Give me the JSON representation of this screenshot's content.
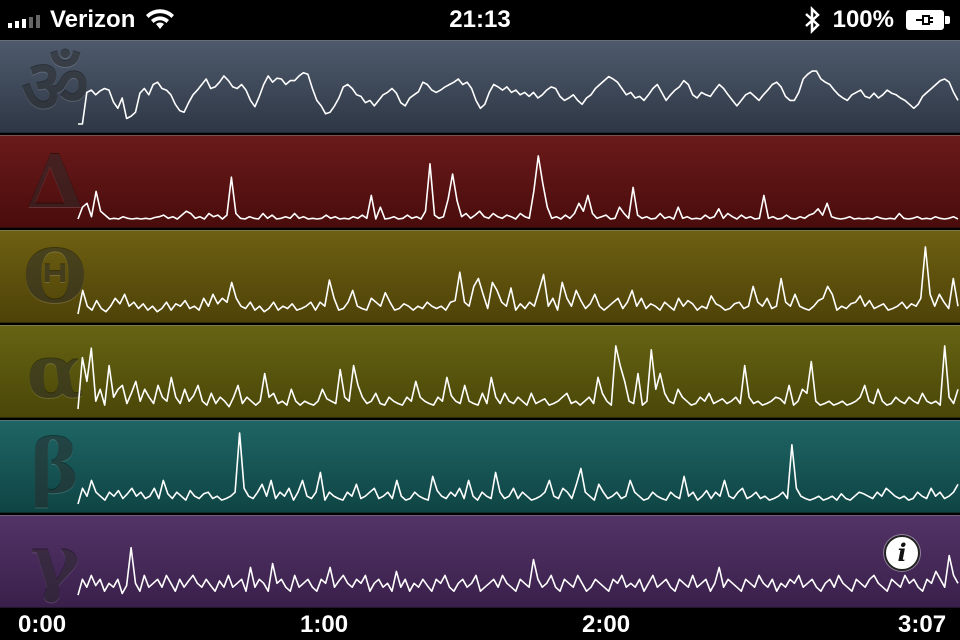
{
  "status_bar": {
    "carrier": "Verizon",
    "time": "21:13",
    "battery_percent": "100%",
    "signal_bars": 5,
    "signal_bars_active": 3
  },
  "bands": [
    {
      "key": "meditation",
      "glyph": "ॐ",
      "color_top": "#4e5a6c",
      "color_bottom": "#2e3745",
      "values": [
        0.05,
        0.05,
        0.45,
        0.48,
        0.42,
        0.47,
        0.5,
        0.48,
        0.33,
        0.25,
        0.38,
        0.12,
        0.15,
        0.2,
        0.44,
        0.5,
        0.42,
        0.55,
        0.58,
        0.5,
        0.48,
        0.42,
        0.3,
        0.22,
        0.2,
        0.32,
        0.42,
        0.48,
        0.55,
        0.62,
        0.5,
        0.52,
        0.58,
        0.66,
        0.6,
        0.52,
        0.5,
        0.55,
        0.48,
        0.35,
        0.27,
        0.4,
        0.55,
        0.66,
        0.58,
        0.63,
        0.62,
        0.55,
        0.6,
        0.6,
        0.66,
        0.7,
        0.68,
        0.5,
        0.35,
        0.28,
        0.18,
        0.2,
        0.28,
        0.38,
        0.52,
        0.55,
        0.5,
        0.42,
        0.4,
        0.32,
        0.35,
        0.28,
        0.35,
        0.42,
        0.45,
        0.5,
        0.44,
        0.32,
        0.28,
        0.38,
        0.42,
        0.46,
        0.58,
        0.55,
        0.48,
        0.45,
        0.48,
        0.52,
        0.55,
        0.58,
        0.62,
        0.55,
        0.58,
        0.5,
        0.35,
        0.25,
        0.3,
        0.45,
        0.55,
        0.52,
        0.48,
        0.52,
        0.45,
        0.48,
        0.42,
        0.45,
        0.4,
        0.45,
        0.38,
        0.42,
        0.48,
        0.52,
        0.5,
        0.4,
        0.35,
        0.38,
        0.42,
        0.35,
        0.3,
        0.38,
        0.42,
        0.5,
        0.55,
        0.6,
        0.65,
        0.62,
        0.58,
        0.5,
        0.42,
        0.45,
        0.38,
        0.4,
        0.35,
        0.42,
        0.5,
        0.55,
        0.45,
        0.35,
        0.42,
        0.48,
        0.52,
        0.6,
        0.55,
        0.42,
        0.38,
        0.45,
        0.42,
        0.4,
        0.48,
        0.55,
        0.5,
        0.42,
        0.35,
        0.28,
        0.35,
        0.42,
        0.45,
        0.4,
        0.35,
        0.42,
        0.48,
        0.55,
        0.58,
        0.52,
        0.4,
        0.35,
        0.35,
        0.45,
        0.62,
        0.68,
        0.72,
        0.72,
        0.62,
        0.58,
        0.55,
        0.48,
        0.42,
        0.38,
        0.35,
        0.42,
        0.45,
        0.48,
        0.4,
        0.38,
        0.44,
        0.38,
        0.42,
        0.48,
        0.44,
        0.42,
        0.38,
        0.35,
        0.3,
        0.25,
        0.3,
        0.4,
        0.45,
        0.5,
        0.55,
        0.6,
        0.62,
        0.58,
        0.45,
        0.35
      ]
    },
    {
      "key": "delta",
      "glyph": "Δ",
      "color_top": "#6a1a1a",
      "color_bottom": "#4a0c0c",
      "values": [
        0.05,
        0.2,
        0.25,
        0.08,
        0.4,
        0.15,
        0.1,
        0.05,
        0.06,
        0.05,
        0.08,
        0.06,
        0.05,
        0.06,
        0.05,
        0.06,
        0.05,
        0.07,
        0.08,
        0.1,
        0.06,
        0.08,
        0.05,
        0.1,
        0.15,
        0.12,
        0.06,
        0.08,
        0.05,
        0.12,
        0.08,
        0.1,
        0.05,
        0.1,
        0.58,
        0.12,
        0.06,
        0.05,
        0.08,
        0.06,
        0.05,
        0.12,
        0.06,
        0.1,
        0.05,
        0.06,
        0.08,
        0.06,
        0.12,
        0.06,
        0.08,
        0.05,
        0.06,
        0.05,
        0.06,
        0.1,
        0.06,
        0.08,
        0.05,
        0.06,
        0.05,
        0.08,
        0.06,
        0.1,
        0.06,
        0.35,
        0.05,
        0.2,
        0.05,
        0.06,
        0.08,
        0.05,
        0.06,
        0.1,
        0.06,
        0.08,
        0.05,
        0.15,
        0.75,
        0.1,
        0.06,
        0.08,
        0.3,
        0.62,
        0.28,
        0.08,
        0.12,
        0.06,
        0.1,
        0.15,
        0.08,
        0.06,
        0.12,
        0.08,
        0.06,
        0.1,
        0.08,
        0.05,
        0.12,
        0.08,
        0.06,
        0.4,
        0.85,
        0.5,
        0.2,
        0.06,
        0.08,
        0.05,
        0.1,
        0.06,
        0.12,
        0.25,
        0.15,
        0.35,
        0.12,
        0.06,
        0.08,
        0.1,
        0.05,
        0.06,
        0.2,
        0.12,
        0.06,
        0.45,
        0.1,
        0.06,
        0.08,
        0.05,
        0.06,
        0.12,
        0.06,
        0.08,
        0.05,
        0.2,
        0.06,
        0.08,
        0.05,
        0.06,
        0.05,
        0.1,
        0.06,
        0.08,
        0.18,
        0.06,
        0.12,
        0.08,
        0.05,
        0.1,
        0.06,
        0.08,
        0.05,
        0.06,
        0.35,
        0.06,
        0.08,
        0.05,
        0.06,
        0.1,
        0.06,
        0.05,
        0.08,
        0.06,
        0.1,
        0.12,
        0.18,
        0.1,
        0.25,
        0.08,
        0.06,
        0.05,
        0.06,
        0.08,
        0.05,
        0.06,
        0.05,
        0.06,
        0.05,
        0.08,
        0.06,
        0.05,
        0.06,
        0.05,
        0.12,
        0.06,
        0.05,
        0.06,
        0.08,
        0.05,
        0.06,
        0.05,
        0.08,
        0.06,
        0.05,
        0.06,
        0.08,
        0.05
      ]
    },
    {
      "key": "theta",
      "glyph": "Θ",
      "color_top": "#6e6012",
      "color_bottom": "#4e4208",
      "values": [
        0.05,
        0.35,
        0.15,
        0.1,
        0.22,
        0.12,
        0.08,
        0.15,
        0.25,
        0.18,
        0.3,
        0.15,
        0.2,
        0.12,
        0.18,
        0.1,
        0.15,
        0.08,
        0.12,
        0.2,
        0.1,
        0.18,
        0.15,
        0.22,
        0.12,
        0.15,
        0.1,
        0.25,
        0.15,
        0.3,
        0.18,
        0.25,
        0.2,
        0.45,
        0.25,
        0.15,
        0.12,
        0.2,
        0.1,
        0.15,
        0.08,
        0.12,
        0.2,
        0.1,
        0.15,
        0.12,
        0.18,
        0.1,
        0.12,
        0.15,
        0.2,
        0.1,
        0.2,
        0.15,
        0.48,
        0.25,
        0.1,
        0.12,
        0.2,
        0.35,
        0.15,
        0.12,
        0.1,
        0.25,
        0.2,
        0.15,
        0.32,
        0.2,
        0.1,
        0.12,
        0.18,
        0.15,
        0.1,
        0.15,
        0.12,
        0.2,
        0.15,
        0.12,
        0.15,
        0.1,
        0.2,
        0.22,
        0.58,
        0.2,
        0.15,
        0.4,
        0.5,
        0.3,
        0.12,
        0.45,
        0.35,
        0.2,
        0.15,
        0.38,
        0.1,
        0.18,
        0.12,
        0.2,
        0.15,
        0.35,
        0.55,
        0.15,
        0.25,
        0.1,
        0.45,
        0.25,
        0.15,
        0.35,
        0.22,
        0.12,
        0.18,
        0.3,
        0.15,
        0.1,
        0.15,
        0.2,
        0.25,
        0.12,
        0.2,
        0.35,
        0.15,
        0.25,
        0.12,
        0.18,
        0.15,
        0.1,
        0.2,
        0.15,
        0.1,
        0.25,
        0.15,
        0.22,
        0.18,
        0.1,
        0.15,
        0.12,
        0.28,
        0.18,
        0.15,
        0.1,
        0.12,
        0.18,
        0.2,
        0.12,
        0.15,
        0.4,
        0.2,
        0.15,
        0.25,
        0.12,
        0.15,
        0.5,
        0.2,
        0.15,
        0.3,
        0.15,
        0.12,
        0.1,
        0.15,
        0.22,
        0.25,
        0.4,
        0.3,
        0.1,
        0.15,
        0.12,
        0.18,
        0.2,
        0.28,
        0.15,
        0.22,
        0.12,
        0.15,
        0.18,
        0.1,
        0.12,
        0.15,
        0.2,
        0.12,
        0.18,
        0.15,
        0.25,
        0.9,
        0.3,
        0.15,
        0.3,
        0.2,
        0.12,
        0.5,
        0.15
      ]
    },
    {
      "key": "alpha",
      "glyph": "α",
      "color_top": "#666413",
      "color_bottom": "#4a4608",
      "values": [
        0.05,
        0.7,
        0.4,
        0.82,
        0.15,
        0.3,
        0.1,
        0.6,
        0.2,
        0.3,
        0.35,
        0.12,
        0.25,
        0.4,
        0.15,
        0.3,
        0.2,
        0.12,
        0.35,
        0.2,
        0.15,
        0.45,
        0.2,
        0.12,
        0.3,
        0.15,
        0.22,
        0.35,
        0.15,
        0.1,
        0.25,
        0.12,
        0.2,
        0.15,
        0.08,
        0.2,
        0.35,
        0.12,
        0.2,
        0.15,
        0.1,
        0.15,
        0.5,
        0.2,
        0.25,
        0.12,
        0.15,
        0.1,
        0.3,
        0.15,
        0.1,
        0.15,
        0.12,
        0.1,
        0.15,
        0.3,
        0.18,
        0.15,
        0.12,
        0.55,
        0.2,
        0.15,
        0.6,
        0.35,
        0.2,
        0.12,
        0.15,
        0.25,
        0.12,
        0.1,
        0.2,
        0.15,
        0.12,
        0.1,
        0.2,
        0.15,
        0.4,
        0.2,
        0.15,
        0.12,
        0.1,
        0.2,
        0.15,
        0.45,
        0.22,
        0.15,
        0.12,
        0.35,
        0.15,
        0.12,
        0.1,
        0.25,
        0.12,
        0.45,
        0.2,
        0.12,
        0.25,
        0.15,
        0.12,
        0.2,
        0.15,
        0.1,
        0.25,
        0.12,
        0.15,
        0.18,
        0.1,
        0.12,
        0.15,
        0.2,
        0.25,
        0.12,
        0.15,
        0.1,
        0.15,
        0.2,
        0.12,
        0.45,
        0.25,
        0.15,
        0.1,
        0.85,
        0.6,
        0.4,
        0.15,
        0.12,
        0.5,
        0.1,
        0.15,
        0.8,
        0.3,
        0.5,
        0.25,
        0.15,
        0.12,
        0.3,
        0.2,
        0.15,
        0.1,
        0.12,
        0.2,
        0.15,
        0.25,
        0.12,
        0.15,
        0.18,
        0.12,
        0.15,
        0.2,
        0.12,
        0.6,
        0.2,
        0.12,
        0.15,
        0.1,
        0.12,
        0.15,
        0.2,
        0.18,
        0.12,
        0.35,
        0.1,
        0.15,
        0.3,
        0.25,
        0.65,
        0.15,
        0.1,
        0.12,
        0.15,
        0.1,
        0.12,
        0.15,
        0.1,
        0.12,
        0.15,
        0.2,
        0.35,
        0.15,
        0.12,
        0.3,
        0.15,
        0.1,
        0.12,
        0.2,
        0.15,
        0.12,
        0.2,
        0.15,
        0.12,
        0.25,
        0.15,
        0.12,
        0.15,
        0.1,
        0.85,
        0.2,
        0.12,
        0.3
      ]
    },
    {
      "key": "beta",
      "glyph": "β",
      "color_top": "#1f6565",
      "color_bottom": "#0f4444",
      "values": [
        0.05,
        0.25,
        0.15,
        0.35,
        0.2,
        0.15,
        0.1,
        0.2,
        0.15,
        0.22,
        0.12,
        0.18,
        0.25,
        0.15,
        0.2,
        0.12,
        0.15,
        0.25,
        0.12,
        0.35,
        0.18,
        0.12,
        0.2,
        0.15,
        0.1,
        0.22,
        0.15,
        0.12,
        0.18,
        0.2,
        0.12,
        0.15,
        0.1,
        0.12,
        0.15,
        0.2,
        0.95,
        0.25,
        0.15,
        0.12,
        0.2,
        0.3,
        0.15,
        0.35,
        0.12,
        0.2,
        0.15,
        0.25,
        0.1,
        0.2,
        0.35,
        0.15,
        0.12,
        0.2,
        0.45,
        0.1,
        0.2,
        0.15,
        0.12,
        0.1,
        0.2,
        0.15,
        0.3,
        0.12,
        0.15,
        0.2,
        0.25,
        0.12,
        0.15,
        0.2,
        0.12,
        0.35,
        0.15,
        0.1,
        0.12,
        0.2,
        0.15,
        0.12,
        0.1,
        0.4,
        0.22,
        0.15,
        0.12,
        0.2,
        0.15,
        0.25,
        0.12,
        0.35,
        0.15,
        0.1,
        0.2,
        0.15,
        0.12,
        0.45,
        0.2,
        0.12,
        0.15,
        0.25,
        0.12,
        0.2,
        0.15,
        0.1,
        0.12,
        0.15,
        0.2,
        0.35,
        0.15,
        0.12,
        0.25,
        0.2,
        0.12,
        0.3,
        0.5,
        0.2,
        0.15,
        0.1,
        0.3,
        0.2,
        0.12,
        0.15,
        0.2,
        0.12,
        0.15,
        0.35,
        0.2,
        0.15,
        0.1,
        0.12,
        0.2,
        0.15,
        0.12,
        0.1,
        0.2,
        0.15,
        0.12,
        0.4,
        0.15,
        0.2,
        0.1,
        0.15,
        0.22,
        0.12,
        0.2,
        0.15,
        0.35,
        0.15,
        0.12,
        0.2,
        0.25,
        0.12,
        0.15,
        0.2,
        0.12,
        0.15,
        0.1,
        0.12,
        0.15,
        0.2,
        0.12,
        0.8,
        0.25,
        0.15,
        0.12,
        0.1,
        0.12,
        0.15,
        0.1,
        0.12,
        0.15,
        0.1,
        0.18,
        0.12,
        0.1,
        0.15,
        0.2,
        0.18,
        0.15,
        0.12,
        0.2,
        0.15,
        0.25,
        0.2,
        0.15,
        0.12,
        0.15,
        0.1,
        0.12,
        0.2,
        0.15,
        0.12,
        0.25,
        0.15,
        0.2,
        0.12,
        0.15,
        0.2,
        0.3
      ]
    },
    {
      "key": "gamma",
      "glyph": "γ",
      "color_top": "#523466",
      "color_bottom": "#3a1f4b",
      "values": [
        0.1,
        0.3,
        0.2,
        0.35,
        0.22,
        0.3,
        0.15,
        0.25,
        0.2,
        0.3,
        0.12,
        0.22,
        0.7,
        0.25,
        0.15,
        0.35,
        0.2,
        0.25,
        0.3,
        0.2,
        0.35,
        0.25,
        0.15,
        0.3,
        0.2,
        0.28,
        0.35,
        0.25,
        0.2,
        0.3,
        0.22,
        0.15,
        0.28,
        0.2,
        0.35,
        0.2,
        0.25,
        0.3,
        0.15,
        0.45,
        0.2,
        0.3,
        0.25,
        0.15,
        0.5,
        0.25,
        0.3,
        0.2,
        0.15,
        0.35,
        0.2,
        0.25,
        0.3,
        0.2,
        0.15,
        0.3,
        0.25,
        0.45,
        0.2,
        0.28,
        0.35,
        0.25,
        0.2,
        0.3,
        0.25,
        0.35,
        0.15,
        0.25,
        0.3,
        0.2,
        0.25,
        0.15,
        0.4,
        0.2,
        0.3,
        0.15,
        0.25,
        0.2,
        0.3,
        0.22,
        0.15,
        0.3,
        0.25,
        0.35,
        0.2,
        0.15,
        0.25,
        0.3,
        0.2,
        0.25,
        0.35,
        0.15,
        0.2,
        0.25,
        0.3,
        0.2,
        0.35,
        0.25,
        0.2,
        0.15,
        0.3,
        0.25,
        0.2,
        0.55,
        0.3,
        0.2,
        0.25,
        0.35,
        0.2,
        0.15,
        0.3,
        0.25,
        0.2,
        0.35,
        0.25,
        0.15,
        0.2,
        0.3,
        0.25,
        0.2,
        0.15,
        0.3,
        0.25,
        0.35,
        0.2,
        0.25,
        0.2,
        0.3,
        0.15,
        0.25,
        0.35,
        0.2,
        0.25,
        0.3,
        0.2,
        0.15,
        0.3,
        0.25,
        0.2,
        0.35,
        0.2,
        0.25,
        0.3,
        0.15,
        0.25,
        0.45,
        0.2,
        0.3,
        0.25,
        0.2,
        0.15,
        0.3,
        0.25,
        0.2,
        0.35,
        0.25,
        0.2,
        0.3,
        0.15,
        0.25,
        0.2,
        0.3,
        0.25,
        0.35,
        0.2,
        0.25,
        0.3,
        0.2,
        0.15,
        0.25,
        0.3,
        0.2,
        0.35,
        0.25,
        0.2,
        0.15,
        0.3,
        0.25,
        0.2,
        0.3,
        0.35,
        0.25,
        0.2,
        0.15,
        0.3,
        0.25,
        0.2,
        0.35,
        0.25,
        0.3,
        0.2,
        0.15,
        0.3,
        0.25,
        0.4,
        0.3,
        0.2,
        0.6,
        0.35,
        0.25
      ]
    }
  ],
  "info_label": "i",
  "timeline": {
    "labels": [
      "0:00",
      "1:00",
      "2:00",
      "3:07"
    ]
  }
}
